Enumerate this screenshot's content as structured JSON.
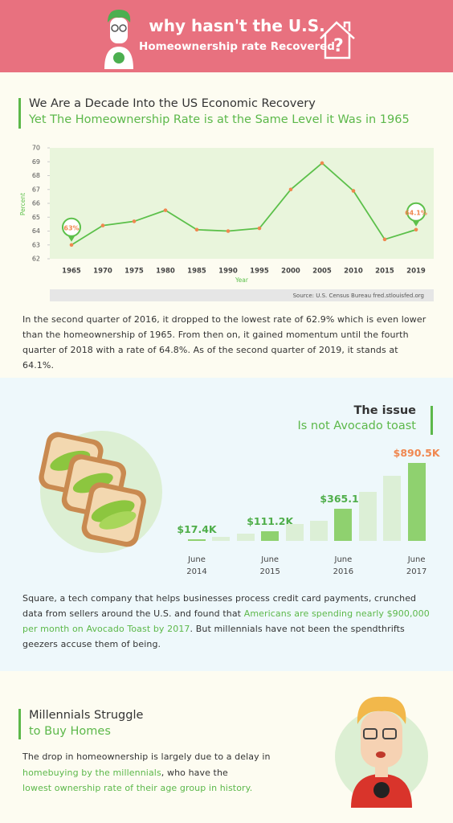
{
  "header": {
    "title": "why hasn't the U.S.",
    "subtitle": "Homeownership rate Recovered"
  },
  "sections": [
    {
      "heading": "We Are a Decade Into the US Economic Recovery",
      "subheading": "Yet The Homeownership Rate is at the Same Level it Was in 1965",
      "paragraph": "In the second quarter of 2016, it dropped to the lowest rate of 62.9% which is even lower than the homeownership of 1965. From then on, it gained momentum until the fourth quarter of 2018 with a rate of 64.8%. As of the second quarter of 2019, it stands at 64.1%."
    },
    {
      "heading": "The issue",
      "subheading": "Is not Avocado toast",
      "paragraph": [
        "Square, a tech company that helps businesses process credit card payments, crunched data from sellers around the U.S. and found that ",
        "Americans are spending nearly $900,000 per month on Avocado Toast by 2017",
        ". But millennials have not been the spendthrifts geezers accuse them of being."
      ]
    },
    {
      "heading": "Millennials Struggle",
      "subheading": "to Buy Homes",
      "paragraph": [
        "The drop in homeownership is largely due to a delay in",
        "homebuying by the millennials",
        ", who have the",
        "lowest ownership rate of their age group in history."
      ]
    }
  ],
  "chart_data": [
    {
      "type": "line",
      "categories": [
        "1965",
        "1970",
        "1975",
        "1980",
        "1985",
        "1990",
        "1995",
        "2000",
        "2005",
        "2010",
        "2015",
        "2019"
      ],
      "values": [
        63.0,
        64.4,
        64.7,
        65.5,
        64.1,
        64.0,
        64.2,
        67.0,
        68.9,
        66.9,
        63.4,
        64.1
      ],
      "value_labels": [
        "63%",
        null,
        null,
        null,
        null,
        null,
        null,
        null,
        null,
        null,
        null,
        "64.1%"
      ],
      "xlabel": "Year",
      "ylabel": "Percent",
      "ylim": [
        62,
        70
      ],
      "yticks": [
        62,
        63,
        64,
        65,
        66,
        67,
        68,
        69,
        70
      ],
      "color": "#5cc04a",
      "marker_color": "#f0874f",
      "plot_background": "#e9f5dc",
      "source": "Source: U.S. Census Bureau fred.stlouisfed.org"
    },
    {
      "type": "bar",
      "categories": [
        "June 2014",
        null,
        null,
        "June 2015",
        null,
        null,
        "June 2016",
        null,
        null,
        "June 2017"
      ],
      "values": [
        17.4,
        50,
        80,
        111.2,
        190,
        230,
        365.1,
        560,
        740,
        890.5
      ],
      "value_labels": [
        "$17.4K",
        null,
        null,
        "$111.2K",
        null,
        null,
        "$365.1K",
        null,
        null,
        "$890.5K"
      ],
      "color": "#dcefd6",
      "highlight_color": "#8fd16f",
      "label_color": "#4fae4a",
      "last_label_color": "#f0874f"
    }
  ]
}
